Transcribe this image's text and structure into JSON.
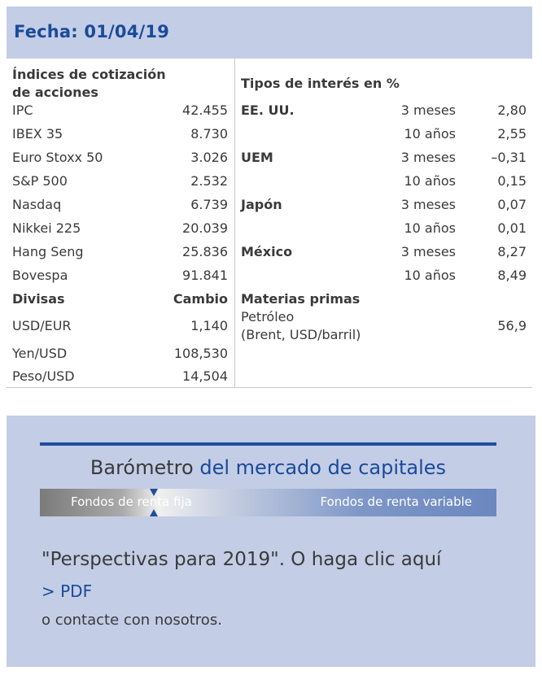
{
  "header": {
    "title": "Fecha: 01/04/19"
  },
  "indices": {
    "heading_line1": "Índices de cotización",
    "heading_line2": "de acciones",
    "rows": [
      {
        "name": "IPC",
        "value": "42.455"
      },
      {
        "name": "IBEX 35",
        "value": "8.730"
      },
      {
        "name": "Euro Stoxx 50",
        "value": "3.026"
      },
      {
        "name": "S&P 500",
        "value": "2.532"
      },
      {
        "name": "Nasdaq",
        "value": "6.739"
      },
      {
        "name": "Nikkei 225",
        "value": "20.039"
      },
      {
        "name": "Hang Seng",
        "value": "25.836"
      },
      {
        "name": "Bovespa",
        "value": "91.841"
      }
    ]
  },
  "divisas": {
    "heading": "Divisas",
    "col_heading": "Cambio",
    "rows": [
      {
        "name": "USD/EUR",
        "value": "1,140"
      },
      {
        "name": "Yen/USD",
        "value": "108,530"
      },
      {
        "name": "Peso/USD",
        "value": "14,504"
      }
    ]
  },
  "tipos": {
    "heading": "Tipos de interés en %",
    "rows": [
      {
        "region": "EE. UU.",
        "term": "3 meses",
        "value": "2,80"
      },
      {
        "region": "",
        "term": "10 años",
        "value": "2,55"
      },
      {
        "region": "UEM",
        "term": "3 meses",
        "value": "–0,31"
      },
      {
        "region": "",
        "term": "10 años",
        "value": "0,15"
      },
      {
        "region": "Japón",
        "term": "3 meses",
        "value": "0,07"
      },
      {
        "region": "",
        "term": "10 años",
        "value": "0,01"
      },
      {
        "region": "México",
        "term": "3 meses",
        "value": "8,27"
      },
      {
        "region": "",
        "term": "10 años",
        "value": "8,49"
      }
    ]
  },
  "materias": {
    "heading": "Materias primas",
    "item_line1": "Petróleo",
    "item_line2": "(Brent, USD/barril)",
    "value": "56,9"
  },
  "barometro": {
    "title_part1": "Barómetro",
    "title_part2": "del mercado de capitales",
    "bar_left": "Fondos de renta fija",
    "bar_right": "Fondos de renta variable",
    "colors": {
      "dark_blue": "#1f4f9e",
      "panel_bg": "#c3cde6"
    }
  },
  "cta": {
    "line1": "\"Perspectivas para 2019\". O haga clic aquí",
    "link": "> PDF",
    "line3": "o contacte con nosotros."
  }
}
